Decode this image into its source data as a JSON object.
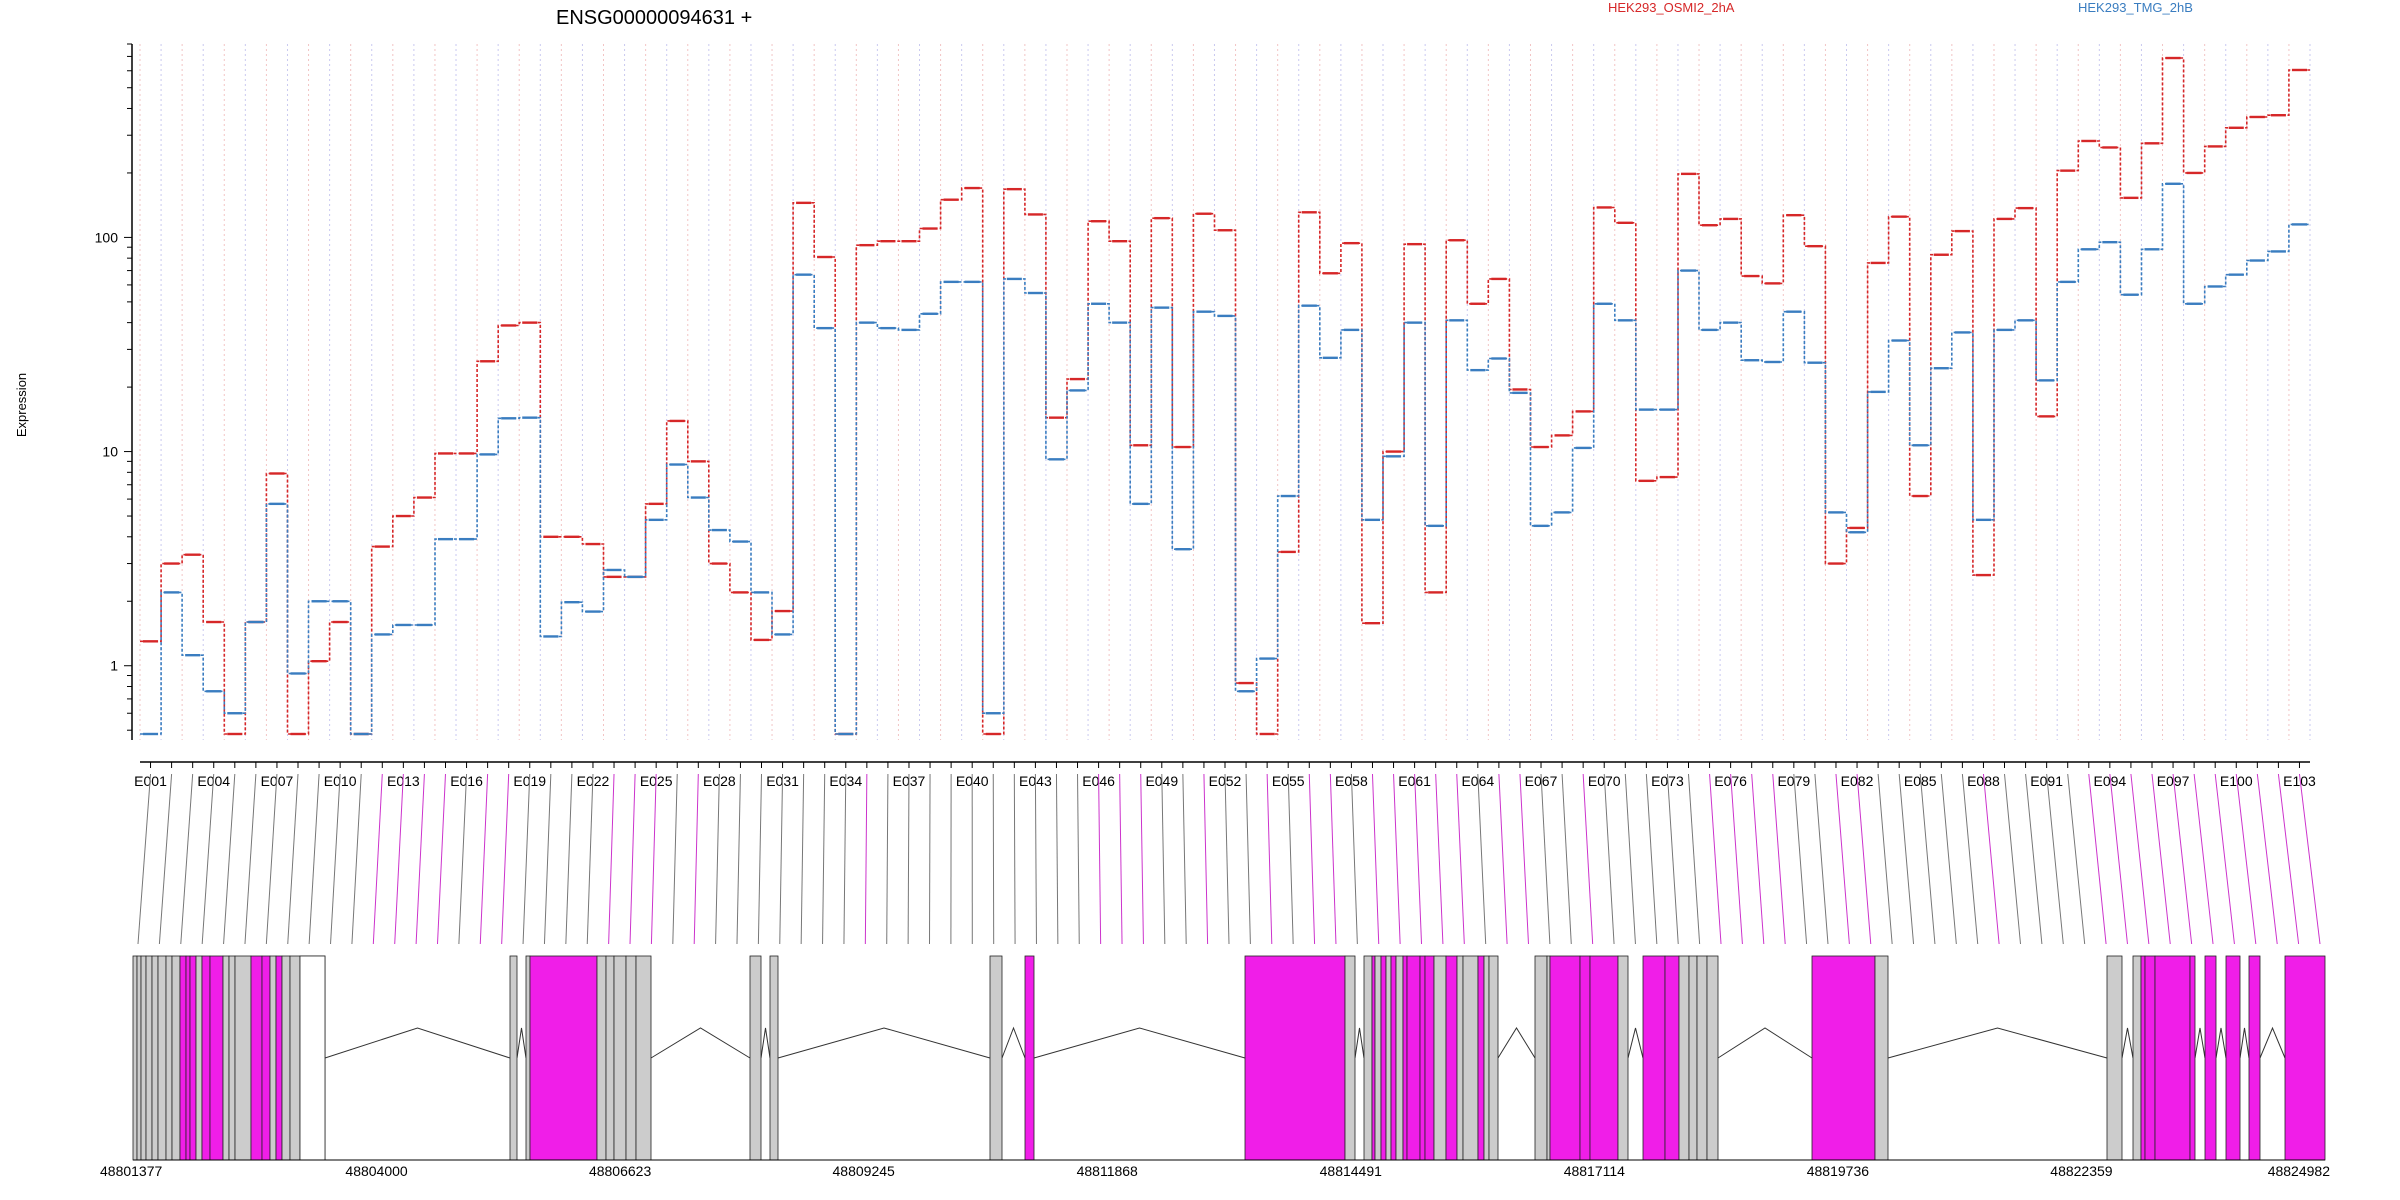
{
  "chart_data": {
    "type": "line",
    "title": "ENSG00000094631 +",
    "ylabel": "Expression",
    "xlabel": "",
    "y_scale": "log",
    "y_ticks": [
      1,
      10,
      100
    ],
    "y_tick_labels": [
      "1",
      "10",
      "100"
    ],
    "ylim": [
      0.45,
      800
    ],
    "grid": "vertical dotted lines per exon (alternating red / blue)",
    "legend_placement": "top",
    "exon_count": 103,
    "x_tick_labels": [
      "E001",
      "E004",
      "E007",
      "E010",
      "E013",
      "E016",
      "E019",
      "E022",
      "E025",
      "E028",
      "E031",
      "E034",
      "E037",
      "E040",
      "E043",
      "E046",
      "E049",
      "E052",
      "E055",
      "E058",
      "E061",
      "E064",
      "E067",
      "E070",
      "E073",
      "E076",
      "E079",
      "E082",
      "E085",
      "E088",
      "E091",
      "E094",
      "E097",
      "E100",
      "E103"
    ],
    "series": [
      {
        "name": "HEK293_OSMI2_2hA",
        "color": "#d62728",
        "values": [
          1.3,
          3,
          3.3,
          1.6,
          0.48,
          1.6,
          7.9,
          0.48,
          1.05,
          1.6,
          0.48,
          3.6,
          5,
          6.1,
          9.8,
          9.8,
          26.4,
          38.8,
          40,
          4,
          4,
          3.7,
          2.6,
          2.6,
          5.7,
          13.9,
          9,
          3,
          2.2,
          1.32,
          1.8,
          145,
          81,
          0.48,
          92,
          96,
          96,
          110,
          150,
          170,
          0.48,
          168,
          128,
          14.4,
          21.8,
          119,
          96,
          10.7,
          123,
          10.5,
          129,
          108,
          0.83,
          0.48,
          3.4,
          131,
          68,
          94,
          1.58,
          10,
          93,
          2.2,
          97,
          49,
          64,
          19.5,
          10.5,
          11.9,
          15.4,
          138,
          117,
          7.3,
          7.6,
          198,
          114,
          122,
          66,
          61,
          127,
          91,
          3,
          4.4,
          76,
          125,
          6.2,
          83,
          107,
          2.65,
          122,
          137,
          14.6,
          205,
          282,
          263,
          153,
          275,
          688,
          200,
          266,
          325,
          365,
          372,
          605
        ]
      },
      {
        "name": "HEK293_TMG_2hB",
        "color": "#3a7dc0",
        "values": [
          0.48,
          2.2,
          1.12,
          0.76,
          0.6,
          1.6,
          5.7,
          0.92,
          2,
          2,
          0.48,
          1.4,
          1.55,
          1.55,
          3.9,
          3.9,
          9.7,
          14.3,
          14.4,
          1.37,
          1.98,
          1.79,
          2.8,
          2.6,
          4.8,
          8.7,
          6.1,
          4.3,
          3.8,
          2.2,
          1.4,
          67,
          37.7,
          0.48,
          40,
          37.7,
          37,
          44,
          62,
          62,
          0.6,
          64,
          55,
          9.2,
          19.3,
          49,
          40,
          5.7,
          47,
          3.5,
          45,
          43,
          0.76,
          1.08,
          6.2,
          48,
          27.4,
          37,
          4.8,
          9.5,
          40,
          4.5,
          41,
          24,
          27.2,
          18.8,
          4.5,
          5.2,
          10.4,
          49,
          41,
          15.7,
          15.7,
          70,
          37,
          40,
          26.7,
          26.2,
          45,
          26,
          5.2,
          4.2,
          19,
          33,
          10.7,
          24.5,
          36,
          4.8,
          37,
          41,
          21.5,
          62,
          88,
          95,
          54,
          88,
          178,
          49,
          59,
          67,
          78,
          86,
          115
        ]
      }
    ],
    "gene_axis_labels": [
      "48801377",
      "48804000",
      "48806623",
      "48809245",
      "48811868",
      "48814491",
      "48817114",
      "48819736",
      "48822359",
      "48824982"
    ],
    "exon_highlight_color": "#f01ee8",
    "exon_normal_color": "#cccccc"
  }
}
